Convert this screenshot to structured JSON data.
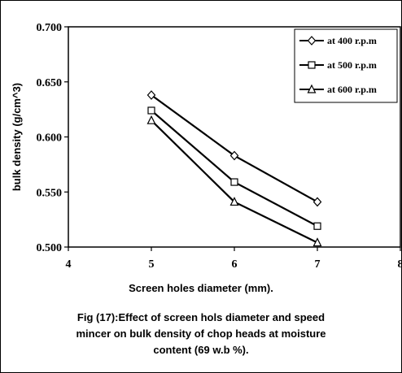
{
  "chart_data": {
    "type": "line",
    "xlabel": "Screen holes diameter (mm).",
    "ylabel": "bulk density (g/cm^3)",
    "x": [
      5,
      6,
      7
    ],
    "xlim": [
      4,
      8
    ],
    "ylim": [
      0.5,
      0.7
    ],
    "x_ticks": [
      "4",
      "5",
      "6",
      "7",
      "8"
    ],
    "y_ticks": [
      "0.500",
      "0.550",
      "0.600",
      "0.650",
      "0.700"
    ],
    "grid": false,
    "legend_position": "top-right",
    "series": [
      {
        "name": "at 400 r.p.m",
        "marker": "diamond",
        "values": [
          0.638,
          0.583,
          0.541
        ]
      },
      {
        "name": "at 500 r.p.m",
        "marker": "square",
        "values": [
          0.624,
          0.559,
          0.519
        ]
      },
      {
        "name": "at 600 r.p.m",
        "marker": "triangle",
        "values": [
          0.615,
          0.541,
          0.504
        ]
      }
    ]
  },
  "caption": {
    "line1": "Fig (17):Effect of screen hols diameter and speed",
    "line2": "mincer on  bulk density  of chop heads at moisture",
    "line3": "content (69 w.b %)."
  }
}
